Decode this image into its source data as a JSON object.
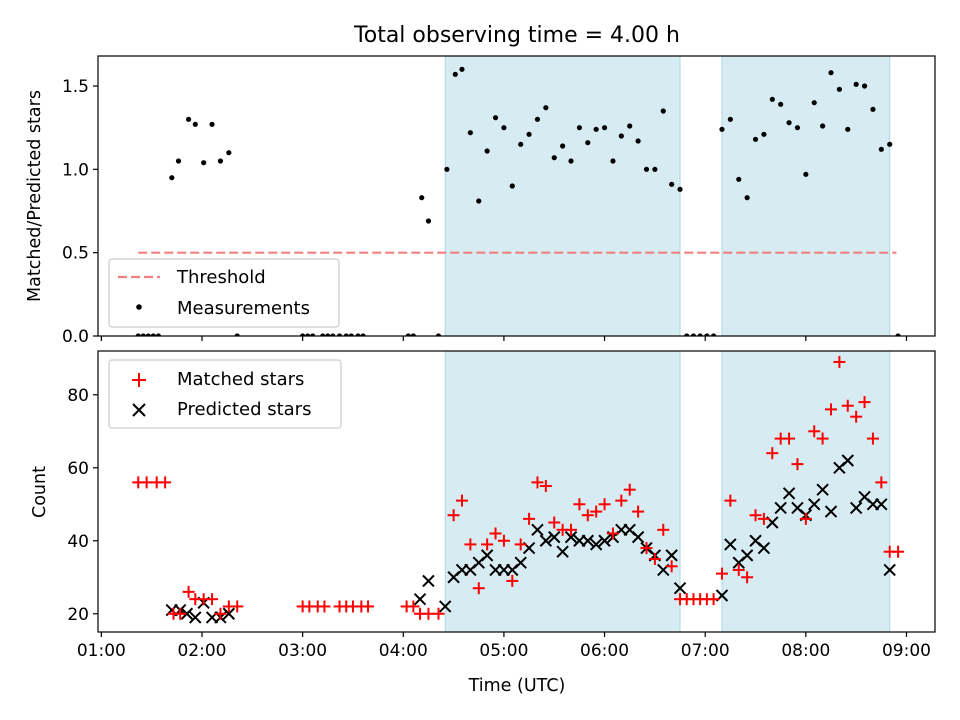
{
  "figure": {
    "title": "Total observing time = 4.00 h"
  },
  "colors": {
    "threshold": "#f08080",
    "measurement": "#000000",
    "matched": "#ff0000",
    "predicted": "#000000",
    "highlight": "#add8e6"
  },
  "chart_data": [
    {
      "type": "scatter",
      "panel": "top",
      "title": "Total observing time = 4.00 h",
      "xlabel": "",
      "ylabel": "Matched/Predicted stars",
      "xlim": [
        "00:58",
        "09:17"
      ],
      "ylim": [
        0,
        1.68
      ],
      "x_ticks": [
        "01:00",
        "02:00",
        "03:00",
        "04:00",
        "05:00",
        "06:00",
        "07:00",
        "08:00",
        "09:00"
      ],
      "y_ticks": [
        "0.0",
        "0.5",
        "1.0",
        "1.5"
      ],
      "grid": false,
      "legend_placement": "lower-left",
      "shaded_intervals": [
        [
          "04:25",
          "06:45"
        ],
        [
          "07:10",
          "08:50"
        ]
      ],
      "series": [
        {
          "name": "Threshold",
          "style": "dashed-line",
          "x": [
            "01:22",
            "08:54"
          ],
          "y": [
            0.5,
            0.5
          ]
        },
        {
          "name": "Measurements",
          "style": "dot",
          "x": [
            "01:22",
            "01:25",
            "01:28",
            "01:31",
            "01:34",
            "01:42",
            "01:46",
            "01:52",
            "01:56",
            "02:01",
            "02:06",
            "02:11",
            "02:16",
            "02:21",
            "03:00",
            "03:03",
            "03:06",
            "03:12",
            "03:15",
            "03:18",
            "03:22",
            "03:26",
            "03:29",
            "03:33",
            "03:36",
            "04:03",
            "04:06",
            "04:11",
            "04:15",
            "04:21",
            "04:26",
            "04:31",
            "04:35",
            "04:40",
            "04:45",
            "04:50",
            "04:55",
            "05:00",
            "05:05",
            "05:10",
            "05:15",
            "05:20",
            "05:25",
            "05:30",
            "05:35",
            "05:40",
            "05:45",
            "05:50",
            "05:55",
            "06:00",
            "06:05",
            "06:10",
            "06:15",
            "06:20",
            "06:25",
            "06:30",
            "06:35",
            "06:40",
            "06:45",
            "06:49",
            "06:53",
            "06:57",
            "07:01",
            "07:05",
            "07:10",
            "07:15",
            "07:20",
            "07:25",
            "07:30",
            "07:35",
            "07:40",
            "07:45",
            "07:50",
            "07:55",
            "08:00",
            "08:05",
            "08:10",
            "08:15",
            "08:20",
            "08:25",
            "08:30",
            "08:35",
            "08:40",
            "08:45",
            "08:50",
            "08:55"
          ],
          "y": [
            0,
            0,
            0,
            0,
            0,
            0.95,
            1.05,
            1.3,
            1.27,
            1.04,
            1.27,
            1.05,
            1.1,
            0,
            0,
            0,
            0,
            0,
            0,
            0,
            0,
            0,
            0,
            0,
            0,
            0,
            0,
            0.83,
            0.69,
            0,
            1.0,
            1.57,
            1.6,
            1.22,
            0.81,
            1.11,
            1.31,
            1.25,
            0.9,
            1.15,
            1.21,
            1.3,
            1.37,
            1.07,
            1.14,
            1.05,
            1.25,
            1.16,
            1.24,
            1.25,
            1.05,
            1.2,
            1.26,
            1.17,
            1.0,
            1.0,
            1.35,
            0.91,
            0.88,
            0,
            0,
            0,
            0,
            0,
            1.24,
            1.3,
            0.94,
            0.83,
            1.18,
            1.21,
            1.42,
            1.39,
            1.28,
            1.25,
            0.97,
            1.4,
            1.26,
            1.58,
            1.48,
            1.24,
            1.51,
            1.5,
            1.36,
            1.12,
            1.15,
            0
          ]
        }
      ]
    },
    {
      "type": "scatter",
      "panel": "bottom",
      "xlabel": "Time (UTC)",
      "ylabel": "Count",
      "xlim": [
        "00:58",
        "09:17"
      ],
      "ylim": [
        15,
        92
      ],
      "x_ticks": [
        "01:00",
        "02:00",
        "03:00",
        "04:00",
        "05:00",
        "06:00",
        "07:00",
        "08:00",
        "09:00"
      ],
      "y_ticks": [
        "20",
        "40",
        "60",
        "80"
      ],
      "grid": false,
      "legend_placement": "upper-left",
      "shaded_intervals": [
        [
          "04:25",
          "06:45"
        ],
        [
          "07:10",
          "08:50"
        ]
      ],
      "series": [
        {
          "name": "Matched stars",
          "marker": "+",
          "x": [
            "01:22",
            "01:27",
            "01:33",
            "01:38",
            "01:43",
            "01:47",
            "01:52",
            "01:56",
            "02:01",
            "02:06",
            "02:11",
            "02:16",
            "02:21",
            "03:00",
            "03:04",
            "03:09",
            "03:13",
            "03:22",
            "03:26",
            "03:30",
            "03:35",
            "03:39",
            "04:02",
            "04:06",
            "04:10",
            "04:15",
            "04:21",
            "04:30",
            "04:35",
            "04:40",
            "04:45",
            "04:50",
            "04:55",
            "05:00",
            "05:05",
            "05:10",
            "05:15",
            "05:20",
            "05:25",
            "05:30",
            "05:35",
            "05:40",
            "05:45",
            "05:50",
            "05:55",
            "06:00",
            "06:05",
            "06:10",
            "06:15",
            "06:20",
            "06:25",
            "06:30",
            "06:35",
            "06:40",
            "06:45",
            "06:49",
            "06:53",
            "06:57",
            "07:01",
            "07:05",
            "07:10",
            "07:15",
            "07:20",
            "07:25",
            "07:30",
            "07:35",
            "07:40",
            "07:45",
            "07:50",
            "07:55",
            "08:00",
            "08:05",
            "08:10",
            "08:15",
            "08:20",
            "08:25",
            "08:30",
            "08:35",
            "08:40",
            "08:45",
            "08:50",
            "08:55"
          ],
          "y": [
            56,
            56,
            56,
            56,
            20,
            20,
            26,
            24,
            24,
            24,
            20,
            22,
            22,
            22,
            22,
            22,
            22,
            22,
            22,
            22,
            22,
            22,
            22,
            22,
            20,
            20,
            20,
            47,
            51,
            39,
            27,
            39,
            42,
            40,
            29,
            39,
            46,
            56,
            55,
            45,
            43,
            43,
            50,
            47,
            48,
            50,
            42,
            51,
            54,
            48,
            38,
            35,
            43,
            33,
            24,
            24,
            24,
            24,
            24,
            24,
            31,
            51,
            32,
            30,
            47,
            46,
            64,
            68,
            68,
            61,
            46,
            70,
            68,
            76,
            89,
            77,
            74,
            78,
            68,
            56,
            37,
            37
          ]
        },
        {
          "name": "Predicted stars",
          "marker": "x",
          "x": [
            "01:42",
            "01:47",
            "01:51",
            "01:56",
            "02:01",
            "02:06",
            "02:11",
            "02:16",
            "04:10",
            "04:15",
            "04:25",
            "04:30",
            "04:35",
            "04:40",
            "04:45",
            "04:50",
            "04:55",
            "05:00",
            "05:05",
            "05:10",
            "05:15",
            "05:20",
            "05:25",
            "05:30",
            "05:35",
            "05:40",
            "05:45",
            "05:50",
            "05:55",
            "06:00",
            "06:05",
            "06:10",
            "06:15",
            "06:20",
            "06:25",
            "06:30",
            "06:35",
            "06:40",
            "06:45",
            "07:10",
            "07:15",
            "07:20",
            "07:25",
            "07:30",
            "07:35",
            "07:40",
            "07:45",
            "07:50",
            "07:55",
            "08:00",
            "08:05",
            "08:10",
            "08:15",
            "08:20",
            "08:25",
            "08:30",
            "08:35",
            "08:40",
            "08:45",
            "08:50"
          ],
          "y": [
            21,
            21,
            20,
            19,
            23,
            19,
            19,
            20,
            24,
            29,
            22,
            30,
            32,
            32,
            34,
            36,
            32,
            32,
            32,
            34,
            38,
            43,
            40,
            41,
            37,
            41,
            40,
            40,
            39,
            40,
            41,
            43,
            43,
            41,
            38,
            36,
            32,
            36,
            27,
            25,
            39,
            34,
            36,
            40,
            38,
            45,
            49,
            53,
            49,
            47,
            50,
            54,
            48,
            60,
            62,
            49,
            52,
            50,
            50,
            32
          ]
        }
      ]
    }
  ]
}
